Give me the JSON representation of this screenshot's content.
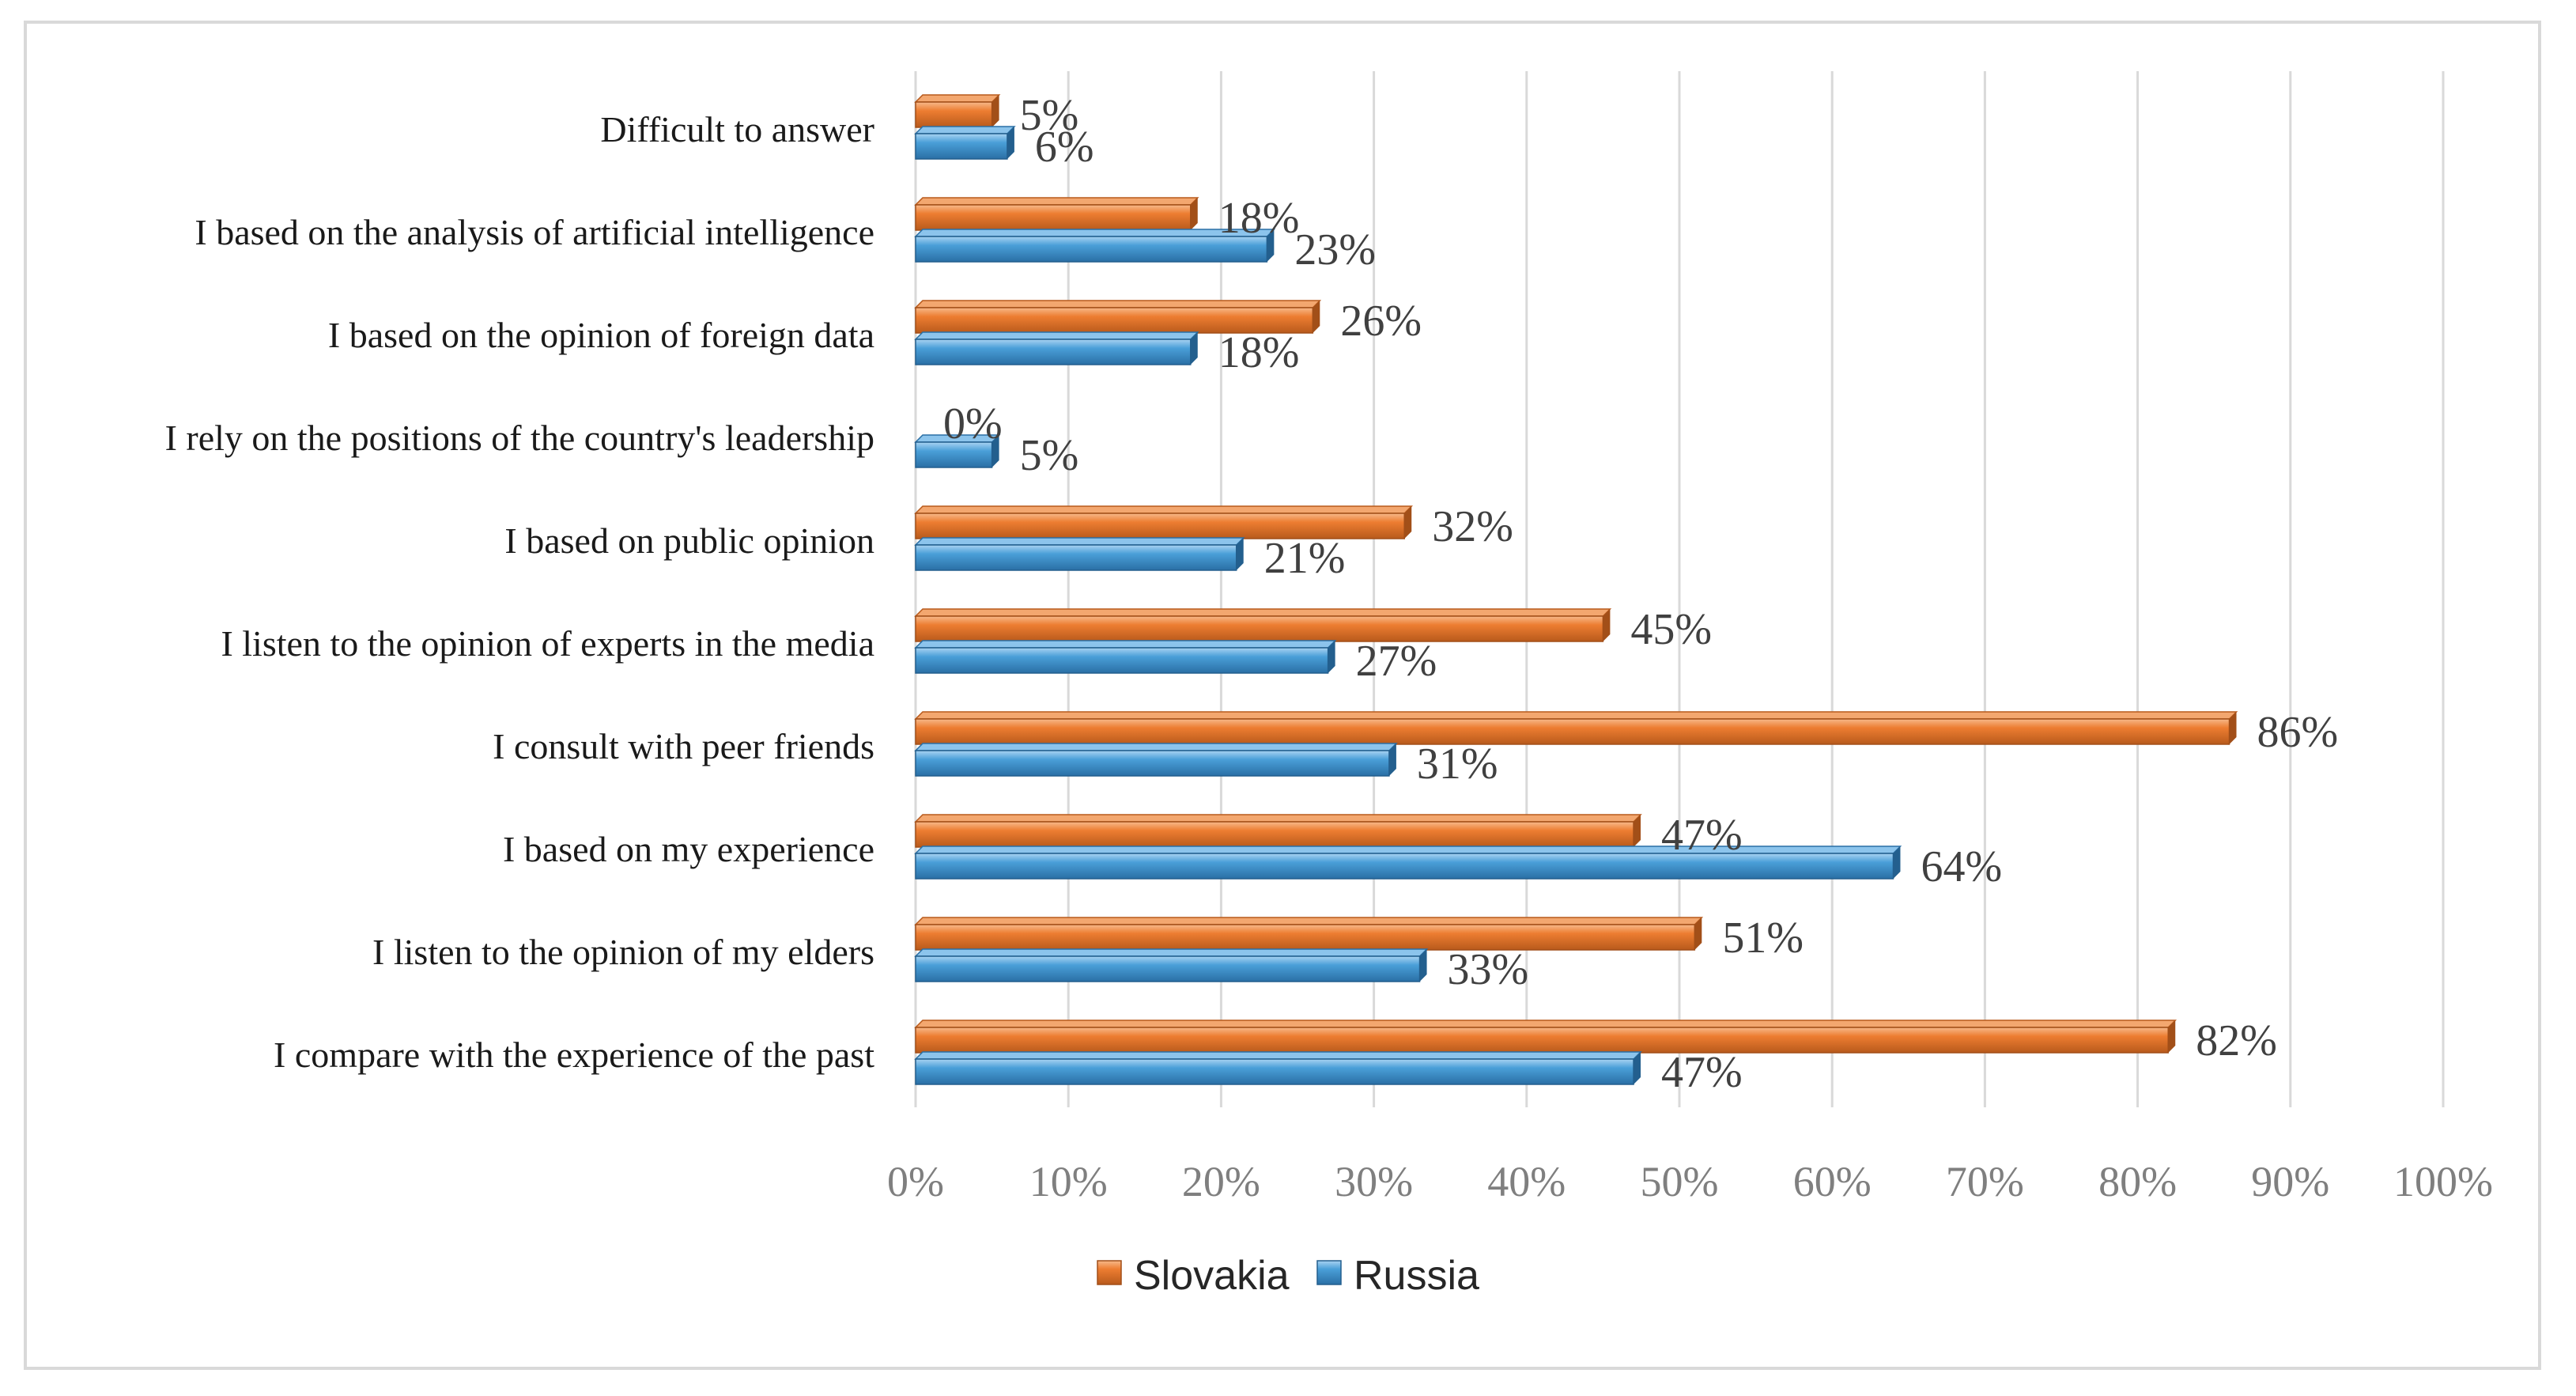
{
  "chart_data": {
    "type": "bar",
    "orientation": "horizontal",
    "categories": [
      "I compare with the experience of the past",
      "I listen to the opinion of my elders",
      "I  based on my experience",
      "I consult with peer friends",
      "I listen to the opinion of experts in the media",
      "I based on public opinion",
      "I rely on the positions of the country's leadership",
      "I based on the opinion of foreign data",
      "I based on the analysis of artificial intelligence",
      "Difficult to answer"
    ],
    "series": [
      {
        "name": "Slovakia",
        "color": "#ed7d31",
        "values": [
          82,
          51,
          47,
          86,
          45,
          32,
          0,
          26,
          18,
          5
        ],
        "labels": [
          "82%",
          "51%",
          "47%",
          "86%",
          "45%",
          "32%",
          "0%",
          "26%",
          "18%",
          "5%"
        ]
      },
      {
        "name": "Russia",
        "color": "#4a9fd8",
        "values": [
          47,
          33,
          64,
          31,
          27,
          21,
          5,
          18,
          23,
          6
        ],
        "labels": [
          "47%",
          "33%",
          "64%",
          "31%",
          "27%",
          "21%",
          "5%",
          "18%",
          "23%",
          "6%"
        ]
      }
    ],
    "xlim": [
      0,
      100
    ],
    "xticks": [
      "0%",
      "10%",
      "20%",
      "30%",
      "40%",
      "50%",
      "60%",
      "70%",
      "80%",
      "90%",
      "100%"
    ],
    "grid": "vertical",
    "legend": "bottom",
    "title": "",
    "xlabel": "",
    "ylabel": ""
  }
}
